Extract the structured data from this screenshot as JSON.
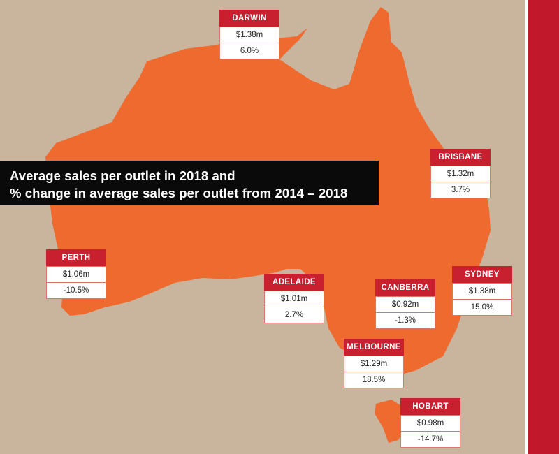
{
  "title": {
    "line1": "Average sales per outlet in 2018 and",
    "line2": "% change in average sales per outlet from 2014 – 2018"
  },
  "colors": {
    "background": "#c9b49d",
    "landmass": "#ee6a2e",
    "accent_red": "#c1192b",
    "title_bg": "#0a0a0a"
  },
  "cities": [
    {
      "key": "darwin",
      "name": "DARWIN",
      "sales": "$1.38m",
      "change": "6.0%"
    },
    {
      "key": "brisbane",
      "name": "BRISBANE",
      "sales": "$1.32m",
      "change": "3.7%"
    },
    {
      "key": "perth",
      "name": "PERTH",
      "sales": "$1.06m",
      "change": "-10.5%"
    },
    {
      "key": "adelaide",
      "name": "ADELAIDE",
      "sales": "$1.01m",
      "change": "2.7%"
    },
    {
      "key": "canberra",
      "name": "CANBERRA",
      "sales": "$0.92m",
      "change": "-1.3%"
    },
    {
      "key": "sydney",
      "name": "SYDNEY",
      "sales": "$1.38m",
      "change": "15.0%"
    },
    {
      "key": "melbourne",
      "name": "MELBOURNE",
      "sales": "$1.29m",
      "change": "18.5%"
    },
    {
      "key": "hobart",
      "name": "HOBART",
      "sales": "$0.98m",
      "change": "-14.7%"
    }
  ]
}
